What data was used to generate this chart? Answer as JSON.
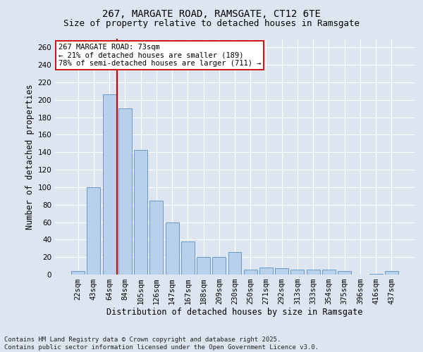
{
  "title_line1": "267, MARGATE ROAD, RAMSGATE, CT12 6TE",
  "title_line2": "Size of property relative to detached houses in Ramsgate",
  "xlabel": "Distribution of detached houses by size in Ramsgate",
  "ylabel": "Number of detached properties",
  "categories": [
    "22sqm",
    "43sqm",
    "64sqm",
    "84sqm",
    "105sqm",
    "126sqm",
    "147sqm",
    "167sqm",
    "188sqm",
    "209sqm",
    "230sqm",
    "250sqm",
    "271sqm",
    "292sqm",
    "313sqm",
    "333sqm",
    "354sqm",
    "375sqm",
    "396sqm",
    "416sqm",
    "437sqm"
  ],
  "values": [
    4,
    100,
    206,
    190,
    143,
    85,
    60,
    38,
    20,
    20,
    26,
    6,
    8,
    7,
    6,
    6,
    6,
    4,
    0,
    1,
    4
  ],
  "bar_color": "#b8d0ea",
  "bar_edge_color": "#6699cc",
  "background_color": "#dde6f0",
  "grid_color": "#ffffff",
  "red_line_x": 2.5,
  "red_line_color": "#cc0000",
  "annotation_text": "267 MARGATE ROAD: 73sqm\n← 21% of detached houses are smaller (189)\n78% of semi-detached houses are larger (711) →",
  "annotation_box_facecolor": "#ffffff",
  "annotation_box_edgecolor": "#cc0000",
  "footer_line1": "Contains HM Land Registry data © Crown copyright and database right 2025.",
  "footer_line2": "Contains public sector information licensed under the Open Government Licence v3.0.",
  "ylim_max": 270,
  "ytick_step": 20,
  "title_fontsize": 10,
  "subtitle_fontsize": 9,
  "axis_label_fontsize": 8.5,
  "tick_fontsize": 7.5,
  "annotation_fontsize": 7.5,
  "footer_fontsize": 6.5
}
